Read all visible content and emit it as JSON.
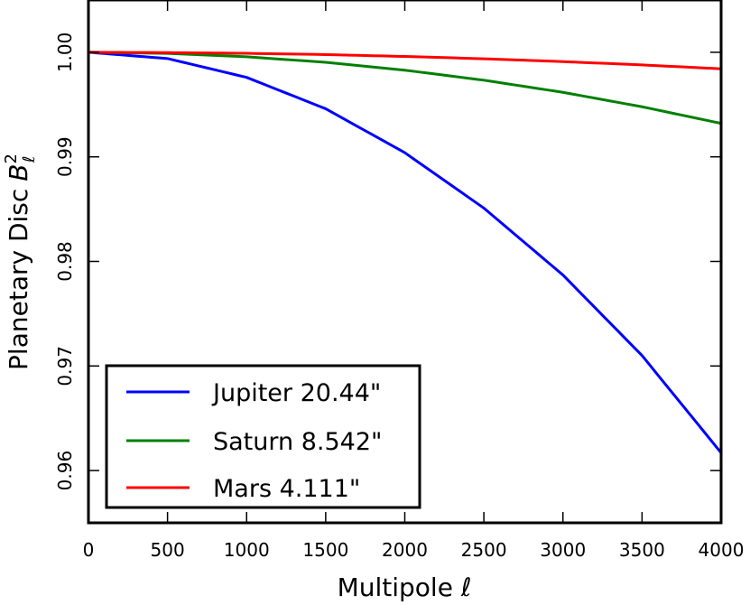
{
  "chart_data": {
    "type": "line",
    "xlabel": "Multipole ℓ",
    "ylabel": "Planetary Disc",
    "ylabel_math": {
      "symbol": "B",
      "superscript": "2",
      "subscript": "ℓ"
    },
    "xlim": [
      0,
      4000
    ],
    "ylim": [
      0.955,
      1.005
    ],
    "xticks": [
      0,
      500,
      1000,
      1500,
      2000,
      2500,
      3000,
      3500,
      4000
    ],
    "xtick_labels": [
      "0",
      "500",
      "1000",
      "1500",
      "2000",
      "2500",
      "3000",
      "3500",
      "4000"
    ],
    "yticks": [
      0.96,
      0.97,
      0.98,
      0.99,
      1.0
    ],
    "ytick_labels": [
      "0.96",
      "0.97",
      "0.98",
      "0.99",
      "1.00"
    ],
    "legend_position": "lower-left",
    "grid": false,
    "x": [
      0,
      500,
      1000,
      1500,
      2000,
      2500,
      3000,
      3500,
      4000
    ],
    "series": [
      {
        "name": "Jupiter 20.44\"",
        "color": "#0000ff",
        "values": [
          1.0,
          0.9994,
          0.9976,
          0.9946,
          0.9904,
          0.9851,
          0.9787,
          0.971,
          0.9617
        ]
      },
      {
        "name": "Saturn 8.542\"",
        "color": "#008000",
        "values": [
          1.0,
          0.99989,
          0.99957,
          0.99904,
          0.99829,
          0.99733,
          0.99617,
          0.99479,
          0.9932
        ]
      },
      {
        "name": "Mars 4.111\"",
        "color": "#ff0000",
        "values": [
          1.0,
          0.99997,
          0.9999,
          0.99978,
          0.9996,
          0.99938,
          0.99911,
          0.99879,
          0.99842
        ]
      }
    ]
  }
}
